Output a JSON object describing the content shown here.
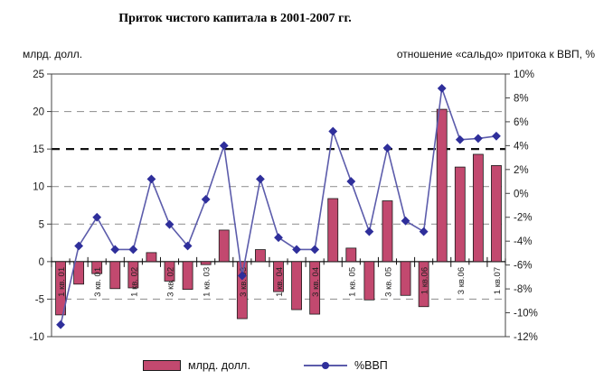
{
  "chart_data": {
    "type": "bar+line",
    "title": "Приток чистого капитала в 2001-2007 гг.",
    "left_axis": {
      "label": "млрд. долл.",
      "min": -10,
      "max": 25,
      "tick_step": 5,
      "tick_labels": [
        "25",
        "20",
        "15",
        "10",
        "5",
        "0",
        "-5",
        "-10"
      ]
    },
    "right_axis": {
      "label": "отношение «сальдо» притока к ВВП, %",
      "min": -12,
      "max": 10,
      "tick_step": 2,
      "tick_labels": [
        "10%",
        "8%",
        "6%",
        "4%",
        "2%",
        "0%",
        "-2%",
        "-4%",
        "-6%",
        "-8%",
        "-10%",
        "-12%"
      ]
    },
    "n_categories": 25,
    "x_tick_labels": [
      "1 кв. 01",
      "3 кв. 01",
      "1 кв. 02",
      "3 кв. 02",
      "1 кв. 03",
      "3 кв. 03",
      "1 кв. 04",
      "3 кв. 04",
      "1 кв. 05",
      "3 кв. 05",
      "1 кв.06",
      "3 кв.06",
      "1 кв.07"
    ],
    "x_tick_indices": [
      0,
      2,
      4,
      6,
      8,
      10,
      12,
      14,
      16,
      18,
      20,
      22,
      24
    ],
    "gridlines": {
      "dashed_at": [
        20,
        10,
        5,
        -5
      ],
      "bold_dashed_at": [
        15
      ],
      "zero_line": 0
    },
    "series": [
      {
        "name": "млрд. долл.",
        "type": "bar",
        "axis": "left",
        "color": "#c2496f",
        "values": [
          -7.1,
          -3.0,
          -1.6,
          -3.6,
          -3.5,
          1.2,
          -2.6,
          -3.7,
          -0.4,
          4.2,
          -7.6,
          1.6,
          -4.0,
          -6.4,
          -7.0,
          8.4,
          1.8,
          -5.1,
          8.1,
          -4.5,
          -6.0,
          20.3,
          12.6,
          14.3,
          12.8
        ]
      },
      {
        "name": "%ВВП",
        "type": "line",
        "axis": "right",
        "color": "#5c5cab",
        "marker_color": "#2f2f9b",
        "values": [
          -11.0,
          -4.4,
          -2.0,
          -4.7,
          -4.7,
          1.2,
          -2.6,
          -4.4,
          -0.5,
          4.0,
          -6.9,
          1.2,
          -3.7,
          -4.7,
          -4.7,
          5.2,
          1.0,
          -3.2,
          3.8,
          -2.3,
          -3.2,
          8.8,
          4.5,
          4.6,
          4.8
        ]
      }
    ],
    "colors": {
      "grid": "#999999",
      "bold_grid": "#111111",
      "axis": "#444444",
      "text": "#1a1a1a"
    }
  }
}
